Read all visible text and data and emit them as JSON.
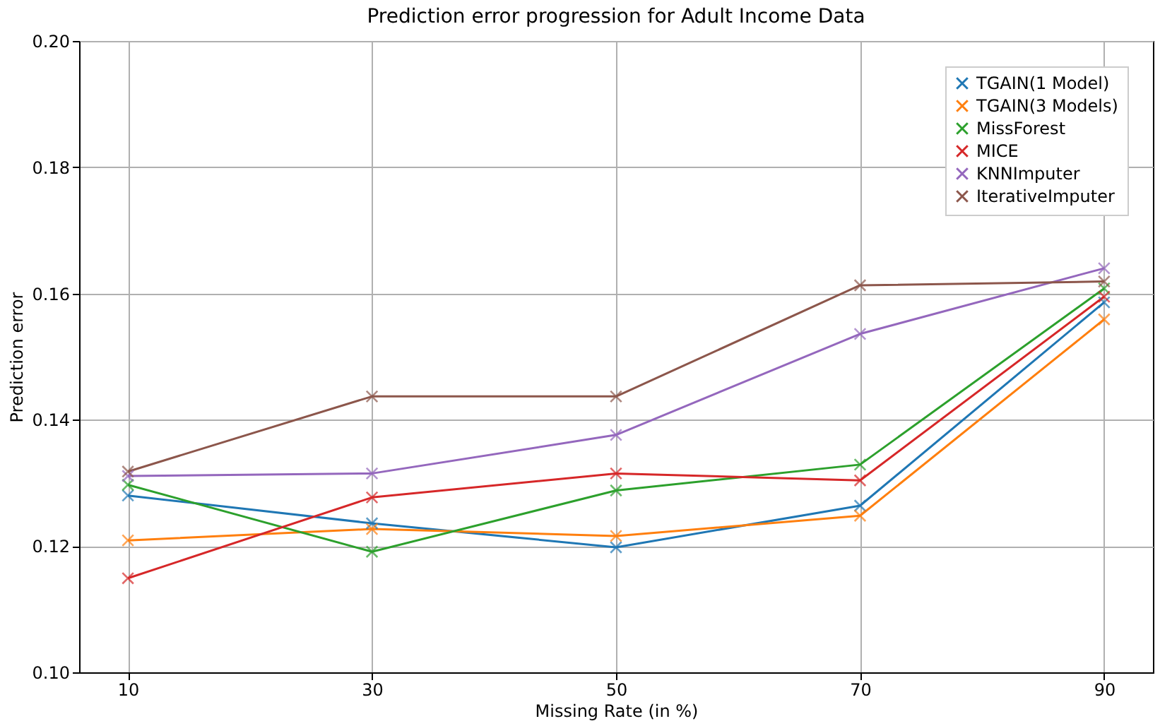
{
  "chart_data": {
    "type": "line",
    "title": "Prediction error progression for Adult Income Data",
    "xlabel": "Missing Rate (in %)",
    "ylabel": "Prediction error",
    "x": [
      10,
      30,
      50,
      70,
      90
    ],
    "xlim": [
      6,
      94
    ],
    "xticks": [
      10,
      30,
      50,
      70,
      90
    ],
    "ylim": [
      0.1,
      0.2
    ],
    "yticks": [
      {
        "value": 0.1,
        "label": "0.10"
      },
      {
        "value": 0.12,
        "label": "0.12"
      },
      {
        "value": 0.14,
        "label": "0.14"
      },
      {
        "value": 0.16,
        "label": "0.16"
      },
      {
        "value": 0.18,
        "label": "0.18"
      },
      {
        "value": 0.2,
        "label": "0.20"
      }
    ],
    "grid": true,
    "legend": "top right",
    "marker": "cross",
    "line_style": "solid",
    "series": [
      {
        "name": "TGAIN(1 Model)",
        "color": "#1f77b4",
        "values": [
          0.128,
          0.1236,
          0.1198,
          0.1264,
          0.1586
        ]
      },
      {
        "name": "TGAIN(3 Models)",
        "color": "#ff7f0e",
        "values": [
          0.1209,
          0.1227,
          0.1216,
          0.1248,
          0.1559
        ]
      },
      {
        "name": "MissForest",
        "color": "#2ca02c",
        "values": [
          0.1297,
          0.1191,
          0.1288,
          0.1329,
          0.1608
        ]
      },
      {
        "name": "MICE",
        "color": "#d62728",
        "values": [
          0.1149,
          0.1277,
          0.1315,
          0.1304,
          0.1595
        ]
      },
      {
        "name": "KNNImputer",
        "color": "#9467bd",
        "values": [
          0.1311,
          0.1315,
          0.1376,
          0.1536,
          0.164
        ]
      },
      {
        "name": "IterativeImputer",
        "color": "#8c564b",
        "values": [
          0.1318,
          0.1437,
          0.1437,
          0.1613,
          0.1619
        ]
      }
    ]
  }
}
